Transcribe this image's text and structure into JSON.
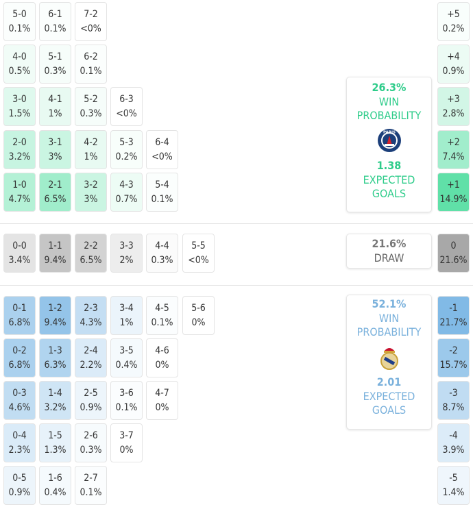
{
  "colors": {
    "home": "#2ecc8a",
    "away": "#7ab1dc",
    "draw": "#999999",
    "home_fill": "#5fe0a8",
    "away_fill": "#6fb0e2",
    "draw_fill": "#a8a8a8"
  },
  "home_rows": [
    [
      {
        "score": "5-0",
        "pct": "0.1%"
      },
      {
        "score": "6-1",
        "pct": "0.1%"
      },
      {
        "score": "7-2",
        "pct": "<0%"
      }
    ],
    [
      {
        "score": "4-0",
        "pct": "0.5%"
      },
      {
        "score": "5-1",
        "pct": "0.3%"
      },
      {
        "score": "6-2",
        "pct": "0.1%"
      }
    ],
    [
      {
        "score": "3-0",
        "pct": "1.5%"
      },
      {
        "score": "4-1",
        "pct": "1%"
      },
      {
        "score": "5-2",
        "pct": "0.3%"
      },
      {
        "score": "6-3",
        "pct": "<0%"
      }
    ],
    [
      {
        "score": "2-0",
        "pct": "3.2%"
      },
      {
        "score": "3-1",
        "pct": "3%"
      },
      {
        "score": "4-2",
        "pct": "1%"
      },
      {
        "score": "5-3",
        "pct": "0.2%"
      },
      {
        "score": "6-4",
        "pct": "<0%"
      }
    ],
    [
      {
        "score": "1-0",
        "pct": "4.7%"
      },
      {
        "score": "2-1",
        "pct": "6.5%"
      },
      {
        "score": "3-2",
        "pct": "3%"
      },
      {
        "score": "4-3",
        "pct": "0.7%"
      },
      {
        "score": "5-4",
        "pct": "0.1%"
      }
    ]
  ],
  "draw_row": [
    {
      "score": "0-0",
      "pct": "3.4%"
    },
    {
      "score": "1-1",
      "pct": "9.4%"
    },
    {
      "score": "2-2",
      "pct": "6.5%"
    },
    {
      "score": "3-3",
      "pct": "2%"
    },
    {
      "score": "4-4",
      "pct": "0.3%"
    },
    {
      "score": "5-5",
      "pct": "<0%"
    }
  ],
  "away_rows": [
    [
      {
        "score": "0-1",
        "pct": "6.8%"
      },
      {
        "score": "1-2",
        "pct": "9.4%"
      },
      {
        "score": "2-3",
        "pct": "4.3%"
      },
      {
        "score": "3-4",
        "pct": "1%"
      },
      {
        "score": "4-5",
        "pct": "0.1%"
      },
      {
        "score": "5-6",
        "pct": "0%"
      }
    ],
    [
      {
        "score": "0-2",
        "pct": "6.8%"
      },
      {
        "score": "1-3",
        "pct": "6.3%"
      },
      {
        "score": "2-4",
        "pct": "2.2%"
      },
      {
        "score": "3-5",
        "pct": "0.4%"
      },
      {
        "score": "4-6",
        "pct": "0%"
      }
    ],
    [
      {
        "score": "0-3",
        "pct": "4.6%"
      },
      {
        "score": "1-4",
        "pct": "3.2%"
      },
      {
        "score": "2-5",
        "pct": "0.9%"
      },
      {
        "score": "3-6",
        "pct": "0.1%"
      },
      {
        "score": "4-7",
        "pct": "0%"
      }
    ],
    [
      {
        "score": "0-4",
        "pct": "2.3%"
      },
      {
        "score": "1-5",
        "pct": "1.3%"
      },
      {
        "score": "2-6",
        "pct": "0.3%"
      },
      {
        "score": "3-7",
        "pct": "0%"
      }
    ],
    [
      {
        "score": "0-5",
        "pct": "0.9%"
      },
      {
        "score": "1-6",
        "pct": "0.4%"
      },
      {
        "score": "2-7",
        "pct": "0.1%"
      }
    ]
  ],
  "margins_home": [
    {
      "label": "+5",
      "pct": "0.2%"
    },
    {
      "label": "+4",
      "pct": "0.9%"
    },
    {
      "label": "+3",
      "pct": "2.8%"
    },
    {
      "label": "+2",
      "pct": "7.4%"
    },
    {
      "label": "+1",
      "pct": "14.9%"
    }
  ],
  "margin_draw": {
    "label": "0",
    "pct": "21.6%"
  },
  "margins_away": [
    {
      "label": "-1",
      "pct": "21.7%"
    },
    {
      "label": "-2",
      "pct": "15.7%"
    },
    {
      "label": "-3",
      "pct": "8.7%"
    },
    {
      "label": "-4",
      "pct": "3.9%"
    },
    {
      "label": "-5",
      "pct": "1.4%"
    }
  ],
  "home_summary": {
    "win_pct": "26.3%",
    "win_label_1": "WIN",
    "win_label_2": "PROBABILITY",
    "xg": "1.38",
    "xg_label_1": "EXPECTED",
    "xg_label_2": "GOALS",
    "crest": "psg-crest-icon",
    "crest_text": "PARIS"
  },
  "draw_summary": {
    "pct": "21.6%",
    "label": "DRAW"
  },
  "away_summary": {
    "win_pct": "52.1%",
    "win_label_1": "WIN",
    "win_label_2": "PROBABILITY",
    "xg": "2.01",
    "xg_label_1": "EXPECTED",
    "xg_label_2": "GOALS",
    "crest": "real-madrid-crest-icon"
  }
}
